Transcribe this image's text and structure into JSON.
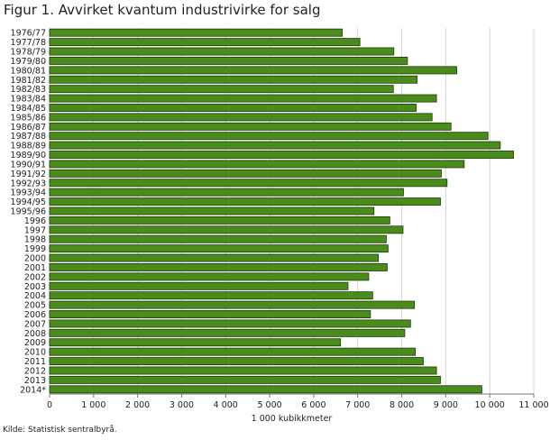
{
  "figure": {
    "title": "Figur 1. Avvirket kvantum industrivirke for salg",
    "source": "Kilde: Statistisk sentralbyrå."
  },
  "chart_data": {
    "type": "bar",
    "orientation": "horizontal",
    "title": "Figur 1. Avvirket kvantum industrivirke for salg",
    "xlabel": "1 000 kubikkmeter",
    "ylabel": "",
    "xlim": [
      0,
      11000
    ],
    "xticks": [
      0,
      1000,
      2000,
      3000,
      4000,
      5000,
      6000,
      7000,
      8000,
      9000,
      10000,
      11000
    ],
    "xtick_labels": [
      "0",
      "1 000",
      "2 000",
      "3 000",
      "4 000",
      "5 000",
      "6 000",
      "7 000",
      "8 000",
      "9 000",
      "10 000",
      "11 000"
    ],
    "grid": true,
    "legend": "none",
    "bar_color": "#4a8c1c",
    "bar_edge_color": "#1f3d0a",
    "categories": [
      "1976/77",
      "1977/78",
      "1978/79",
      "1979/80",
      "1980/81",
      "1981/82",
      "1982/83",
      "1983/84",
      "1984/85",
      "1985/86",
      "1986/87",
      "1987/88",
      "1988/89",
      "1989/90",
      "1990/91",
      "1991/92",
      "1992/93",
      "1993/94",
      "1994/95",
      "1995/96",
      "1996",
      "1997",
      "1998",
      "1999",
      "2000",
      "2001",
      "2002",
      "2003",
      "2004",
      "2005",
      "2006",
      "2007",
      "2008",
      "2009",
      "2010",
      "2011",
      "2012",
      "2013",
      "2014*"
    ],
    "values": [
      6650,
      7050,
      7820,
      8130,
      9250,
      8350,
      7810,
      8790,
      8330,
      8690,
      9120,
      9960,
      10240,
      10540,
      9420,
      8900,
      9030,
      8040,
      8880,
      7370,
      7730,
      8030,
      7650,
      7690,
      7470,
      7670,
      7250,
      6780,
      7340,
      8290,
      7290,
      8200,
      8070,
      6610,
      8310,
      8490,
      8790,
      8880,
      9820
    ]
  }
}
